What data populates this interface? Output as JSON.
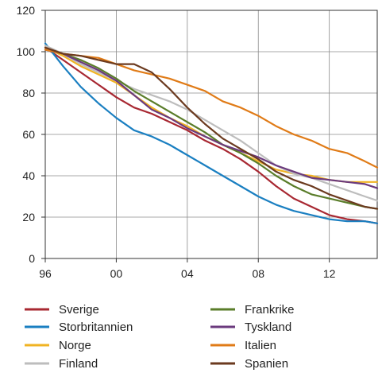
{
  "chart_data": {
    "type": "line",
    "title": "",
    "xlabel": "",
    "ylabel": "",
    "xlim": [
      1996,
      2014.7
    ],
    "ylim": [
      0,
      120
    ],
    "x_ticks": [
      1996,
      2000,
      2004,
      2008,
      2012
    ],
    "x_tick_labels": [
      "96",
      "00",
      "04",
      "08",
      "12"
    ],
    "y_ticks": [
      0,
      20,
      40,
      60,
      80,
      100,
      120
    ],
    "y_tick_labels": [
      "0",
      "20",
      "40",
      "60",
      "80",
      "100",
      "120"
    ],
    "grid": true,
    "legend_position": "bottom, two columns",
    "series": [
      {
        "name": "Sverige",
        "color": "#a82832",
        "x": [
          1996,
          1997,
          1998,
          1999,
          2000,
          2001,
          2002,
          2003,
          2004,
          2005,
          2006,
          2007,
          2008,
          2009,
          2010,
          2011,
          2012,
          2013,
          2014,
          2014.7
        ],
        "y": [
          102,
          96,
          90,
          84,
          78,
          73,
          70,
          66,
          62,
          57,
          53,
          48,
          42,
          35,
          29,
          25,
          21,
          19,
          18,
          17
        ]
      },
      {
        "name": "Storbritannien",
        "color": "#1a7fc1",
        "x": [
          1996,
          1997,
          1998,
          1999,
          2000,
          2001,
          2002,
          2003,
          2004,
          2005,
          2006,
          2007,
          2008,
          2009,
          2010,
          2011,
          2012,
          2013,
          2014,
          2014.7
        ],
        "y": [
          104,
          93,
          83,
          75,
          68,
          62,
          59,
          55,
          50,
          45,
          40,
          35,
          30,
          26,
          23,
          21,
          19,
          18,
          18,
          17
        ]
      },
      {
        "name": "Norge",
        "color": "#f0b323",
        "x": [
          1996,
          1997,
          1998,
          1999,
          2000,
          2001,
          2002,
          2003,
          2004,
          2005,
          2006,
          2007,
          2008,
          2009,
          2010,
          2011,
          2012,
          2013,
          2014,
          2014.7
        ],
        "y": [
          102,
          98,
          93,
          89,
          85,
          79,
          73,
          68,
          64,
          59,
          55,
          51,
          47,
          43,
          41,
          40,
          38,
          37,
          37,
          37
        ]
      },
      {
        "name": "Finland",
        "color": "#bdbdbd",
        "x": [
          1996,
          1997,
          1998,
          1999,
          2000,
          2001,
          2002,
          2003,
          2004,
          2005,
          2006,
          2007,
          2008,
          2009,
          2010,
          2011,
          2012,
          2013,
          2014,
          2014.7
        ],
        "y": [
          103,
          99,
          94,
          90,
          86,
          82,
          79,
          76,
          72,
          67,
          62,
          57,
          51,
          45,
          41,
          39,
          36,
          33,
          30,
          28
        ]
      },
      {
        "name": "Frankrike",
        "color": "#5a7d2a",
        "x": [
          1996,
          1997,
          1998,
          1999,
          2000,
          2001,
          2002,
          2003,
          2004,
          2005,
          2006,
          2007,
          2008,
          2009,
          2010,
          2011,
          2012,
          2013,
          2014,
          2014.7
        ],
        "y": [
          101,
          99,
          96,
          92,
          87,
          81,
          76,
          71,
          66,
          61,
          55,
          51,
          46,
          40,
          35,
          31,
          29,
          27,
          25,
          24
        ]
      },
      {
        "name": "Tyskland",
        "color": "#6b3a7d",
        "x": [
          1996,
          1997,
          1998,
          1999,
          2000,
          2001,
          2002,
          2003,
          2004,
          2005,
          2006,
          2007,
          2008,
          2009,
          2010,
          2011,
          2012,
          2013,
          2014,
          2014.7
        ],
        "y": [
          101,
          99,
          95,
          91,
          86,
          79,
          72,
          68,
          63,
          59,
          55,
          52,
          49,
          45,
          42,
          39,
          38,
          37,
          36,
          34
        ]
      },
      {
        "name": "Italien",
        "color": "#e07b17",
        "x": [
          1996,
          1997,
          1998,
          1999,
          2000,
          2001,
          2002,
          2003,
          2004,
          2005,
          2006,
          2007,
          2008,
          2009,
          2010,
          2011,
          2012,
          2013,
          2014,
          2014.7
        ],
        "y": [
          101,
          99,
          98,
          97,
          94,
          91,
          89,
          87,
          84,
          81,
          76,
          73,
          69,
          64,
          60,
          57,
          53,
          51,
          47,
          44
        ]
      },
      {
        "name": "Spanien",
        "color": "#6b3a1f",
        "x": [
          1996,
          1997,
          1998,
          1999,
          2000,
          2001,
          2002,
          2003,
          2004,
          2005,
          2006,
          2007,
          2008,
          2009,
          2010,
          2011,
          2012,
          2013,
          2014,
          2014.7
        ],
        "y": [
          102,
          99,
          98,
          96,
          94,
          94,
          90,
          82,
          73,
          65,
          58,
          53,
          48,
          42,
          38,
          35,
          31,
          28,
          25,
          24
        ]
      }
    ]
  }
}
